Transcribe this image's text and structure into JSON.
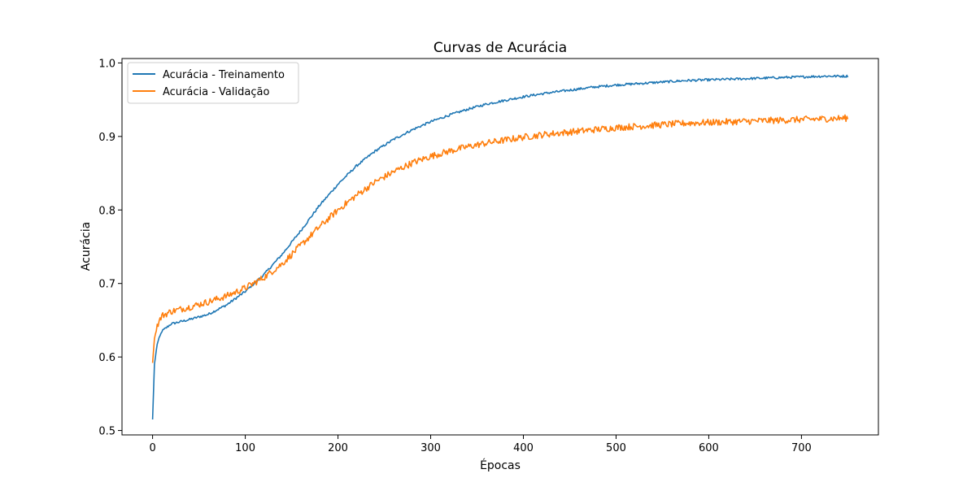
{
  "chart_data": {
    "type": "line",
    "title": "Curvas de Acurácia",
    "xlabel": "Épocas",
    "ylabel": "Acurácia",
    "xlim": [
      -33,
      783
    ],
    "ylim": [
      0.494,
      1.006
    ],
    "xticks": [
      0,
      100,
      200,
      300,
      400,
      500,
      600,
      700
    ],
    "yticks": [
      0.5,
      0.6,
      0.7,
      0.8,
      0.9,
      1.0
    ],
    "xtick_labels": [
      "0",
      "100",
      "200",
      "300",
      "400",
      "500",
      "600",
      "700"
    ],
    "ytick_labels": [
      "0.5",
      "0.6",
      "0.7",
      "0.8",
      "0.9",
      "1.0"
    ],
    "grid": false,
    "legend_position": "top-left",
    "series": [
      {
        "name": "Acurácia - Treinamento",
        "color": "#1f77b4",
        "x": [
          0,
          2,
          5,
          10,
          20,
          40,
          60,
          80,
          100,
          120,
          140,
          160,
          180,
          200,
          220,
          240,
          260,
          280,
          300,
          320,
          340,
          360,
          380,
          400,
          425,
          450,
          475,
          500,
          525,
          550,
          575,
          600,
          625,
          650,
          675,
          700,
          725,
          750
        ],
        "y": [
          0.515,
          0.59,
          0.618,
          0.635,
          0.645,
          0.651,
          0.658,
          0.671,
          0.689,
          0.712,
          0.74,
          0.772,
          0.806,
          0.835,
          0.86,
          0.88,
          0.896,
          0.909,
          0.92,
          0.929,
          0.937,
          0.944,
          0.949,
          0.954,
          0.959,
          0.963,
          0.967,
          0.97,
          0.972,
          0.974,
          0.976,
          0.977,
          0.978,
          0.979,
          0.98,
          0.981,
          0.982,
          0.982
        ]
      },
      {
        "name": "Acurácia - Validação",
        "color": "#ff7f0e",
        "x": [
          0,
          2,
          5,
          10,
          20,
          40,
          60,
          80,
          100,
          120,
          140,
          160,
          180,
          200,
          220,
          240,
          260,
          280,
          300,
          320,
          340,
          360,
          380,
          400,
          425,
          450,
          475,
          500,
          525,
          550,
          575,
          600,
          625,
          650,
          675,
          700,
          725,
          750
        ],
        "y": [
          0.592,
          0.625,
          0.643,
          0.656,
          0.662,
          0.668,
          0.675,
          0.683,
          0.694,
          0.708,
          0.727,
          0.752,
          0.777,
          0.8,
          0.82,
          0.838,
          0.852,
          0.864,
          0.873,
          0.88,
          0.886,
          0.891,
          0.895,
          0.899,
          0.903,
          0.906,
          0.909,
          0.912,
          0.914,
          0.916,
          0.918,
          0.919,
          0.92,
          0.921,
          0.922,
          0.923,
          0.924,
          0.925
        ]
      }
    ]
  }
}
